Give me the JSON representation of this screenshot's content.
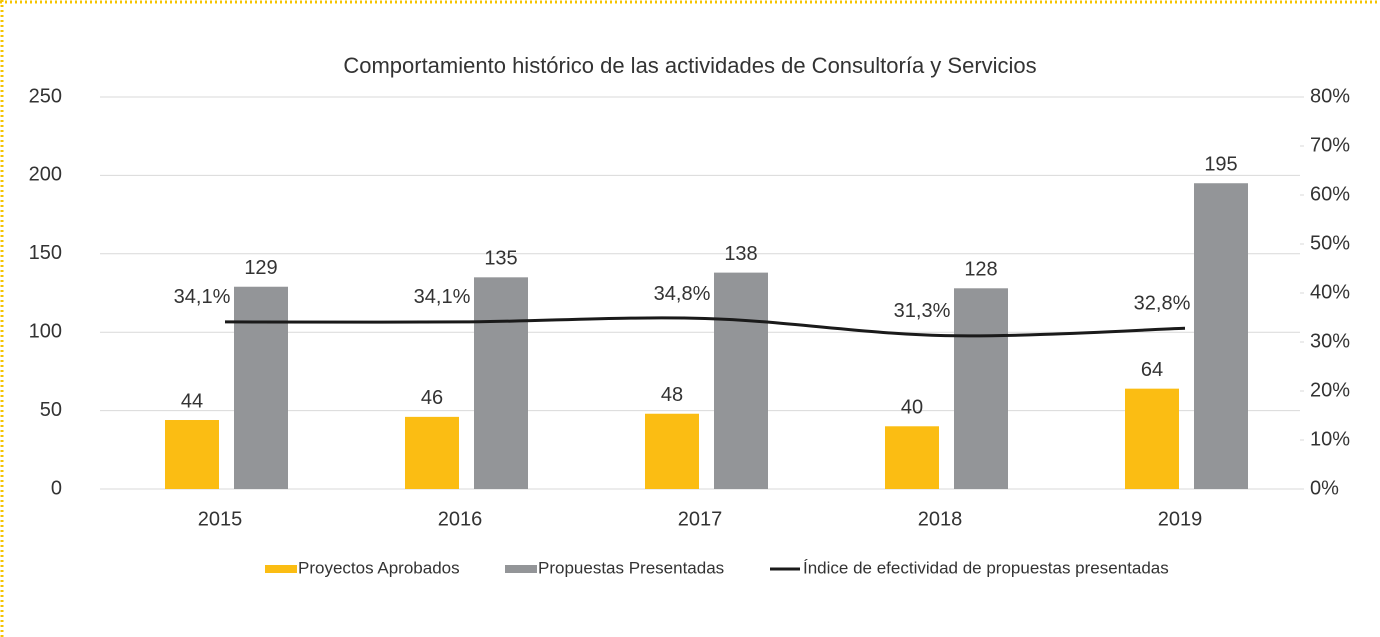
{
  "chart_data": {
    "type": "bar",
    "title": "Comportamiento histórico de las actividades de Consultoría y Servicios",
    "categories": [
      "2015",
      "2016",
      "2017",
      "2018",
      "2019"
    ],
    "series": [
      {
        "name": "Proyectos Aprobados",
        "color": "#fbbd13",
        "values": [
          44,
          46,
          48,
          40,
          64
        ]
      },
      {
        "name": "Propuestas Presentadas",
        "color": "#939598",
        "values": [
          129,
          135,
          138,
          128,
          195
        ]
      },
      {
        "name": "Índice de efectividad de propuestas presentadas",
        "color": "#1a1a1a",
        "type": "line",
        "axis": "y2",
        "values": [
          34.1,
          34.1,
          34.8,
          31.3,
          32.8
        ],
        "value_labels": [
          "34,1%",
          "34,1%",
          "34,8%",
          "31,3%",
          "32,8%"
        ]
      }
    ],
    "ylim": [
      0,
      250
    ],
    "yticks": [
      0,
      50,
      100,
      150,
      200,
      250
    ],
    "y2lim": [
      0,
      80
    ],
    "y2ticks": [
      {
        "value": 0,
        "label": "0%"
      },
      {
        "value": 10,
        "label": "10%"
      },
      {
        "value": 20,
        "label": "20%"
      },
      {
        "value": 30,
        "label": "30%"
      },
      {
        "value": 40,
        "label": "40%"
      },
      {
        "value": 50,
        "label": "50%"
      },
      {
        "value": 60,
        "label": "60%"
      },
      {
        "value": 70,
        "label": "70%"
      },
      {
        "value": 80,
        "label": "80%"
      }
    ],
    "grid": true,
    "legend": "bottom"
  }
}
